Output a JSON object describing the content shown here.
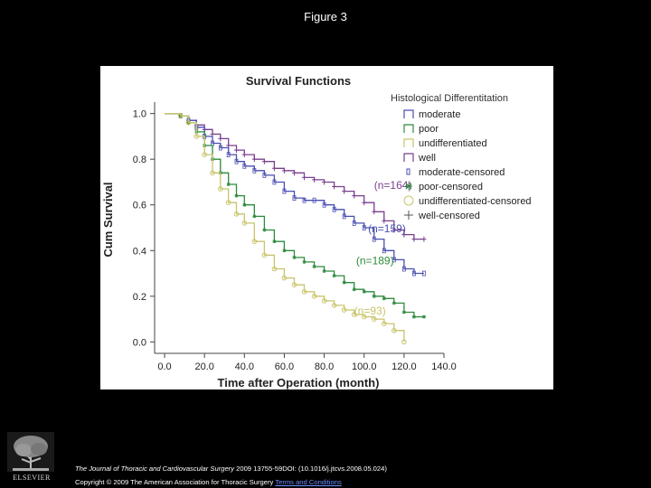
{
  "page": {
    "title": "Figure 3"
  },
  "footer": {
    "journal": "The Journal of Thoracic and Cardiovascular Surgery",
    "citation_rest": " 2009 13755-59DOI: (10.1016/j.jtcvs.2008.05.024)",
    "copyright": "Copyright © 2009 The American Association for Thoracic Surgery ",
    "terms_link": "Terms and Conditions",
    "logo_label": "ELSEVIER"
  },
  "chart_data": {
    "type": "line",
    "subtype": "kaplan-meier step",
    "title": "Survival Functions",
    "xlabel": "Time after Operation (month)",
    "ylabel": "Cum Survival",
    "xlim": [
      -5,
      140
    ],
    "ylim": [
      -0.05,
      1.05
    ],
    "xticks": [
      "0.0",
      "20.0",
      "40.0",
      "60.0",
      "80.0",
      "100.0",
      "120.0",
      "140.0"
    ],
    "yticks": [
      "0.0",
      "0.2",
      "0.4",
      "0.6",
      "0.8",
      "1.0"
    ],
    "legend_title": "Histological Differentitation",
    "legend_position": "right",
    "legend_entries": [
      "moderate",
      "poor",
      "undifferentiated",
      "well",
      "moderate-censored",
      "poor-censored",
      "undifferentiated-censored",
      "well-censored"
    ],
    "series": [
      {
        "name": "well",
        "color": "#7a3f8f",
        "annotation": "(n=164)",
        "annotation_at": [
          105,
          0.67
        ],
        "points": [
          [
            0,
            1.0
          ],
          [
            8,
            0.99
          ],
          [
            12,
            0.97
          ],
          [
            16,
            0.95
          ],
          [
            20,
            0.93
          ],
          [
            24,
            0.91
          ],
          [
            28,
            0.89
          ],
          [
            32,
            0.86
          ],
          [
            36,
            0.84
          ],
          [
            40,
            0.82
          ],
          [
            45,
            0.8
          ],
          [
            50,
            0.79
          ],
          [
            55,
            0.76
          ],
          [
            60,
            0.75
          ],
          [
            65,
            0.74
          ],
          [
            70,
            0.72
          ],
          [
            75,
            0.71
          ],
          [
            80,
            0.7
          ],
          [
            85,
            0.68
          ],
          [
            90,
            0.66
          ],
          [
            95,
            0.64
          ],
          [
            100,
            0.61
          ],
          [
            105,
            0.57
          ],
          [
            110,
            0.53
          ],
          [
            115,
            0.49
          ],
          [
            120,
            0.47
          ],
          [
            125,
            0.45
          ],
          [
            130,
            0.45
          ]
        ]
      },
      {
        "name": "moderate",
        "color": "#4a4fb0",
        "annotation": "(n=159)",
        "annotation_at": [
          102,
          0.48
        ],
        "points": [
          [
            0,
            1.0
          ],
          [
            8,
            0.99
          ],
          [
            12,
            0.97
          ],
          [
            16,
            0.94
          ],
          [
            20,
            0.9
          ],
          [
            24,
            0.87
          ],
          [
            28,
            0.85
          ],
          [
            32,
            0.82
          ],
          [
            36,
            0.79
          ],
          [
            40,
            0.77
          ],
          [
            45,
            0.75
          ],
          [
            50,
            0.73
          ],
          [
            55,
            0.7
          ],
          [
            60,
            0.66
          ],
          [
            65,
            0.63
          ],
          [
            70,
            0.62
          ],
          [
            75,
            0.62
          ],
          [
            80,
            0.6
          ],
          [
            85,
            0.58
          ],
          [
            90,
            0.55
          ],
          [
            95,
            0.52
          ],
          [
            100,
            0.5
          ],
          [
            105,
            0.45
          ],
          [
            110,
            0.4
          ],
          [
            115,
            0.36
          ],
          [
            120,
            0.32
          ],
          [
            125,
            0.3
          ],
          [
            130,
            0.3
          ]
        ]
      },
      {
        "name": "poor",
        "color": "#2e8b3c",
        "annotation": "(n=189)",
        "annotation_at": [
          96,
          0.34
        ],
        "points": [
          [
            0,
            1.0
          ],
          [
            8,
            0.99
          ],
          [
            12,
            0.96
          ],
          [
            16,
            0.92
          ],
          [
            20,
            0.86
          ],
          [
            24,
            0.8
          ],
          [
            28,
            0.74
          ],
          [
            32,
            0.69
          ],
          [
            36,
            0.64
          ],
          [
            40,
            0.6
          ],
          [
            45,
            0.55
          ],
          [
            50,
            0.49
          ],
          [
            55,
            0.44
          ],
          [
            60,
            0.4
          ],
          [
            65,
            0.37
          ],
          [
            70,
            0.35
          ],
          [
            75,
            0.33
          ],
          [
            80,
            0.31
          ],
          [
            85,
            0.29
          ],
          [
            90,
            0.26
          ],
          [
            95,
            0.23
          ],
          [
            100,
            0.22
          ],
          [
            105,
            0.2
          ],
          [
            110,
            0.19
          ],
          [
            115,
            0.17
          ],
          [
            120,
            0.13
          ],
          [
            125,
            0.11
          ],
          [
            130,
            0.11
          ]
        ]
      },
      {
        "name": "undifferentiated",
        "color": "#c9c46a",
        "annotation": "(n=93)",
        "annotation_at": [
          95,
          0.12
        ],
        "points": [
          [
            0,
            1.0
          ],
          [
            8,
            0.99
          ],
          [
            12,
            0.96
          ],
          [
            16,
            0.9
          ],
          [
            20,
            0.82
          ],
          [
            24,
            0.74
          ],
          [
            28,
            0.67
          ],
          [
            32,
            0.61
          ],
          [
            36,
            0.56
          ],
          [
            40,
            0.52
          ],
          [
            45,
            0.44
          ],
          [
            50,
            0.38
          ],
          [
            55,
            0.32
          ],
          [
            60,
            0.28
          ],
          [
            65,
            0.25
          ],
          [
            70,
            0.22
          ],
          [
            75,
            0.2
          ],
          [
            80,
            0.18
          ],
          [
            85,
            0.16
          ],
          [
            90,
            0.14
          ],
          [
            95,
            0.12
          ],
          [
            100,
            0.11
          ],
          [
            105,
            0.1
          ],
          [
            110,
            0.08
          ],
          [
            115,
            0.05
          ],
          [
            120,
            0.0
          ]
        ]
      }
    ]
  }
}
